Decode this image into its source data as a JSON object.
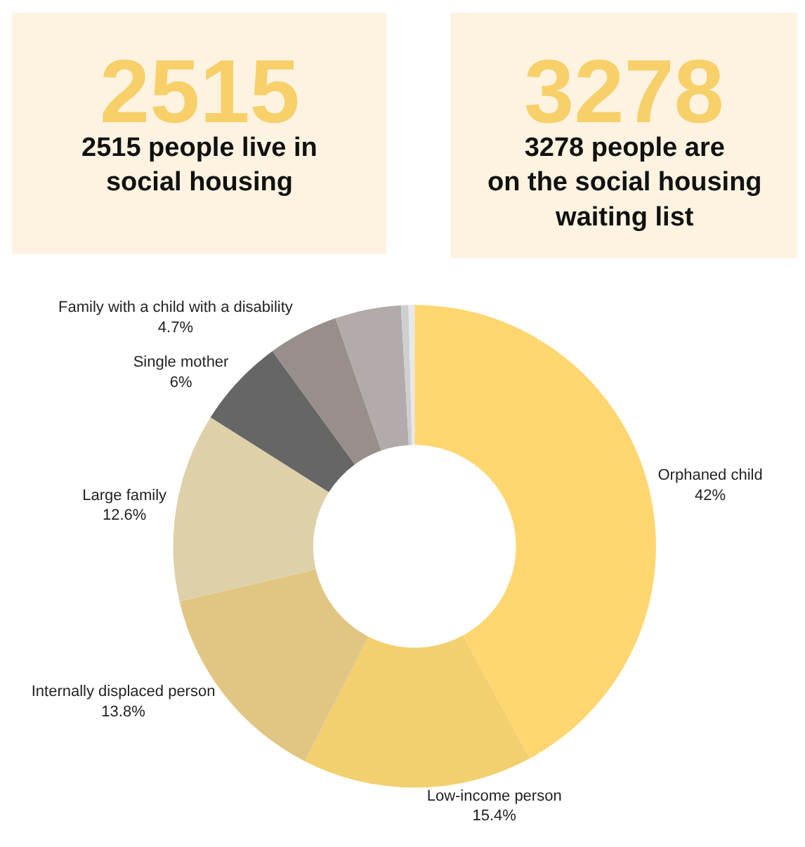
{
  "chart_data": [
    {
      "type": "other",
      "color": "#fdf3e0",
      "annotations": [
        "2515",
        "2515 people live in\nsocial housing"
      ]
    },
    {
      "type": "other",
      "color": "#fdf3e0",
      "annotations": [
        "3278",
        "3278 people are\non the social housing\nwaiting list"
      ]
    },
    {
      "type": "donut",
      "categories": [
        "Orphaned child",
        "Low-income person",
        "Internally displaced person",
        "Large family",
        "Single mother",
        "Family with a child with a disability",
        null,
        null,
        null
      ],
      "values": [
        42,
        15.4,
        13.8,
        12.6,
        6,
        4.7,
        4.4,
        0.5,
        0.4
      ],
      "value_labels": [
        "42%",
        "15.4%",
        "13.8%",
        "12.6%",
        "6%",
        "4.7%",
        null,
        null,
        null
      ],
      "colors": [
        "#ffd670",
        "#f3d06f",
        "#e1c683",
        "#ded1a9",
        "#666666",
        "#988f8c",
        "#b3aba9",
        "#cfcfcf",
        "#e8e8e8"
      ],
      "legend": false
    }
  ]
}
